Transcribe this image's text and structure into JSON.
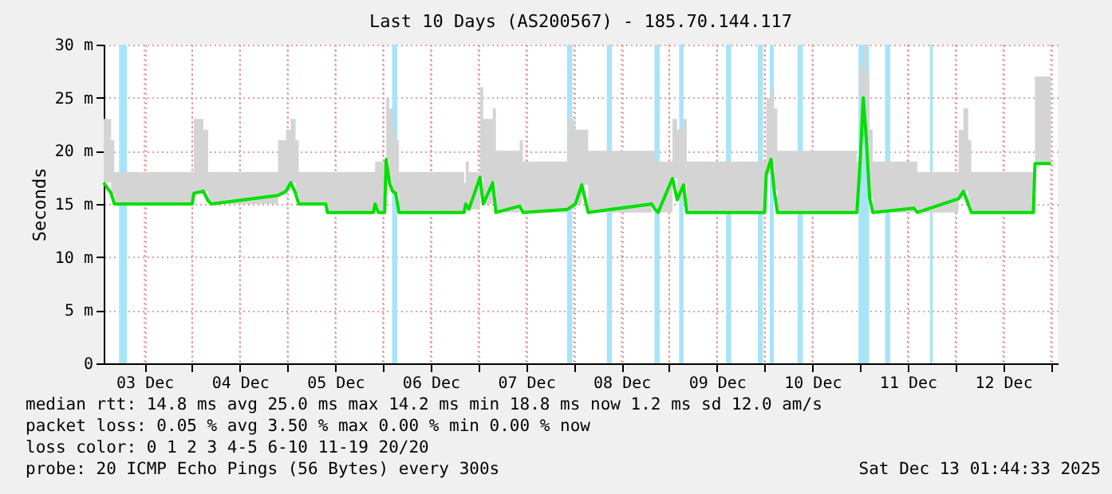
{
  "chart_data": {
    "type": "line",
    "title": "Last 10 Days (AS200567) - 185.70.144.117",
    "ylabel": "Seconds",
    "xlim": [
      "2025-12-03T01:44",
      "2025-12-13T01:44"
    ],
    "xticks": [
      {
        "value": "2025-12-03T12:00",
        "label": "03 Dec"
      },
      {
        "value": "2025-12-04T12:00",
        "label": "04 Dec"
      },
      {
        "value": "2025-12-05T12:00",
        "label": "05 Dec"
      },
      {
        "value": "2025-12-06T12:00",
        "label": "06 Dec"
      },
      {
        "value": "2025-12-07T12:00",
        "label": "07 Dec"
      },
      {
        "value": "2025-12-08T12:00",
        "label": "08 Dec"
      },
      {
        "value": "2025-12-09T12:00",
        "label": "09 Dec"
      },
      {
        "value": "2025-12-10T12:00",
        "label": "10 Dec"
      },
      {
        "value": "2025-12-11T12:00",
        "label": "11 Dec"
      },
      {
        "value": "2025-12-12T12:00",
        "label": "12 Dec"
      },
      {
        "value": "2025-12-04T00:00",
        "label": null
      },
      {
        "value": "2025-12-05T00:00",
        "label": null
      },
      {
        "value": "2025-12-06T00:00",
        "label": null
      },
      {
        "value": "2025-12-07T00:00",
        "label": null
      },
      {
        "value": "2025-12-08T00:00",
        "label": null
      },
      {
        "value": "2025-12-09T00:00",
        "label": null
      },
      {
        "value": "2025-12-10T00:00",
        "label": null
      },
      {
        "value": "2025-12-11T00:00",
        "label": null
      },
      {
        "value": "2025-12-12T00:00",
        "label": null
      },
      {
        "value": "2025-12-13T00:00",
        "label": null
      }
    ],
    "ylim": [
      0,
      30
    ],
    "yticks": [
      0,
      {
        "value": 5,
        "label": "5 m"
      },
      {
        "value": 10,
        "label": "10 m"
      },
      {
        "value": 15,
        "label": "15 m"
      },
      {
        "value": 20,
        "label": "20 m"
      },
      {
        "value": 25,
        "label": "25 m"
      },
      {
        "value": 30,
        "label": "30 m"
      }
    ],
    "grid": true,
    "series": [
      {
        "color": "#00e000",
        "x": [
          "2025-12-03T01:44",
          "2025-12-03T03:36",
          "2025-12-03T04:24",
          "2025-12-04T00:00",
          "2025-12-04T00:24",
          "2025-12-04T02:48",
          "2025-12-04T04:00",
          "2025-12-04T04:48",
          "2025-12-04T21:36",
          "2025-12-04T23:36",
          "2025-12-05T00:48",
          "2025-12-05T02:00",
          "2025-12-05T02:48",
          "2025-12-05T09:36",
          "2025-12-05T10:00",
          "2025-12-05T21:36",
          "2025-12-05T22:00",
          "2025-12-05T22:48",
          "2025-12-06T00:24",
          "2025-12-06T00:48",
          "2025-12-06T01:36",
          "2025-12-06T02:24",
          "2025-12-06T03:12",
          "2025-12-06T04:00",
          "2025-12-06T20:24",
          "2025-12-06T20:48",
          "2025-12-06T21:36",
          "2025-12-07T00:24",
          "2025-12-07T01:12",
          "2025-12-07T03:36",
          "2025-12-07T04:24",
          "2025-12-07T10:24",
          "2025-12-07T11:12",
          "2025-12-07T22:24",
          "2025-12-08T00:24",
          "2025-12-08T02:00",
          "2025-12-08T03:36",
          "2025-12-08T19:36",
          "2025-12-08T20:24",
          "2025-12-08T21:12",
          "2025-12-09T00:48",
          "2025-12-09T02:00",
          "2025-12-09T03:36",
          "2025-12-09T04:24",
          "2025-12-10T00:00",
          "2025-12-10T00:24",
          "2025-12-10T01:36",
          "2025-12-10T02:24",
          "2025-12-10T03:12",
          "2025-12-10T23:12",
          "2025-12-11T00:00",
          "2025-12-11T00:48",
          "2025-12-11T01:36",
          "2025-12-11T02:24",
          "2025-12-11T03:12",
          "2025-12-11T13:36",
          "2025-12-11T14:24",
          "2025-12-12T00:48",
          "2025-12-12T02:00",
          "2025-12-12T03:12",
          "2025-12-12T04:00",
          "2025-12-12T19:36",
          "2025-12-12T20:00",
          "2025-12-13T00:00"
        ],
        "values": [
          17,
          16,
          15,
          15,
          16,
          16.2,
          15.3,
          15,
          15.8,
          16.2,
          17,
          16,
          15,
          15,
          14.2,
          14.2,
          15,
          14.2,
          14.2,
          19.2,
          17,
          16.2,
          16,
          14.2,
          14.2,
          15,
          14.5,
          17.5,
          15,
          17,
          14.2,
          14.8,
          14.2,
          14.5,
          15,
          16.8,
          14.2,
          15,
          14.5,
          14.2,
          17.4,
          15.4,
          16.8,
          14.2,
          14.2,
          17.8,
          19.2,
          16.3,
          14.2,
          14.2,
          18.8,
          25,
          21,
          15.6,
          14.2,
          14.6,
          14.2,
          15.5,
          16.2,
          15,
          14.2,
          14.2,
          18.8,
          18.8
        ],
        "lower": [
          17,
          16,
          15,
          15,
          16,
          16.2,
          15.3,
          15,
          15.8,
          16.2,
          17,
          16,
          15,
          15,
          14.2,
          14.2,
          15,
          14.2,
          14.2,
          19.2,
          17,
          16.2,
          16,
          14.2,
          14.2,
          15,
          14.5,
          17.5,
          15,
          17,
          14.2,
          14.8,
          14.2,
          14.5,
          15,
          16.8,
          14.2,
          15,
          14.5,
          14.2,
          17.4,
          15.4,
          16.8,
          14.2,
          14.2,
          17.8,
          19.2,
          16.3,
          14.2,
          14.2,
          18.8,
          25,
          21,
          15.6,
          14.2,
          14.6,
          14.2,
          15.5,
          16.2,
          15,
          14.2,
          14.2,
          18.8,
          18.8
        ],
        "upper": [
          23,
          21,
          18,
          18,
          23,
          22,
          18,
          18,
          21,
          22,
          23,
          21,
          18,
          18,
          18,
          18,
          19,
          19,
          19,
          25,
          24,
          22,
          21,
          18,
          17,
          19,
          18,
          26,
          23,
          24,
          20,
          21,
          19,
          23,
          22,
          22,
          20,
          20,
          19,
          19,
          23,
          22,
          23,
          19,
          19,
          25,
          26,
          24,
          20,
          19,
          28,
          30,
          27,
          22,
          19,
          19,
          18,
          22,
          24,
          21,
          18,
          18,
          27,
          27
        ]
      }
    ],
    "bands": [
      {
        "axis": "x",
        "from": "2025-12-03T05:36",
        "to": "2025-12-03T07:36",
        "color": "#a8e4f8"
      },
      {
        "axis": "x",
        "from": "2025-12-06T02:17",
        "to": "2025-12-06T03:36",
        "color": "#a8e4f8"
      },
      {
        "axis": "x",
        "from": "2025-12-07T22:17",
        "to": "2025-12-07T23:36",
        "color": "#a8e4f8"
      },
      {
        "axis": "x",
        "from": "2025-12-08T08:17",
        "to": "2025-12-08T09:36",
        "color": "#a8e4f8"
      },
      {
        "axis": "x",
        "from": "2025-12-08T20:17",
        "to": "2025-12-08T21:36",
        "color": "#a8e4f8"
      },
      {
        "axis": "x",
        "from": "2025-12-09T02:30",
        "to": "2025-12-09T03:36",
        "color": "#a8e4f8"
      },
      {
        "axis": "x",
        "from": "2025-12-09T14:17",
        "to": "2025-12-09T15:36",
        "color": "#a8e4f8"
      },
      {
        "axis": "x",
        "from": "2025-12-09T22:17",
        "to": "2025-12-09T23:36",
        "color": "#a8e4f8"
      },
      {
        "axis": "x",
        "from": "2025-12-10T01:17",
        "to": "2025-12-10T02:17",
        "color": "#a8e4f8"
      },
      {
        "axis": "x",
        "from": "2025-12-10T08:17",
        "to": "2025-12-10T09:36",
        "color": "#a8e4f8"
      },
      {
        "axis": "x",
        "from": "2025-12-10T23:36",
        "to": "2025-12-11T02:17",
        "color": "#a8e4f8"
      },
      {
        "axis": "x",
        "from": "2025-12-11T06:17",
        "to": "2025-12-11T07:36",
        "color": "#a8e4f8"
      },
      {
        "axis": "x",
        "from": "2025-12-11T17:36",
        "to": "2025-12-11T18:17",
        "color": "#a8e4f8"
      }
    ],
    "annotations": [
      "median rtt:  14.8 ms avg  25.0 ms max  14.2 ms min  18.8 ms now  1.2 ms sd  12.0   am/s",
      "packet loss: 0.05 % avg  3.50 % max  0.00 % min  0.00 % now",
      "loss color:  0   1   2   3   4-5   6-10   11-19   20/20",
      "probe:       20 ICMP Echo Pings (56 Bytes) every 300s",
      "Sat Dec 13 01:44:33 2025"
    ]
  }
}
